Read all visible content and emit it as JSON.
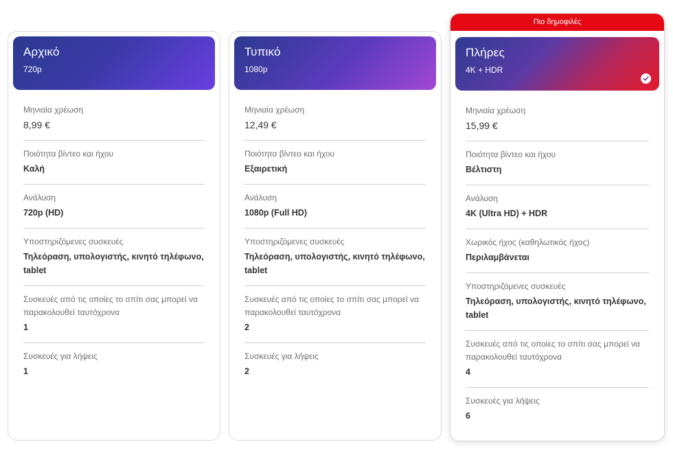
{
  "popular_label": "Πιο δημοφιλές",
  "row_labels": {
    "monthly": "Μηνιαία χρέωση",
    "quality": "Ποιότητα βίντεο και ήχου",
    "resolution": "Ανάλυση",
    "spatial": "Χωρικός ήχος (καθηλωτικός ήχος)",
    "devices": "Υποστηριζόμενες συσκευές",
    "simultaneous": "Συσκευές από τις οποίες το σπίτι σας μπορεί να παρακολουθεί ταυτόχρονα",
    "downloads": "Συσκευές για λήψεις"
  },
  "plans": [
    {
      "name": "Αρχικό",
      "sub": "720p",
      "monthly": "8,99 €",
      "quality": "Καλή",
      "resolution": "720p (HD)",
      "devices": "Τηλεόραση, υπολογιστής, κινητό τηλέφωνο, tablet",
      "simultaneous": "1",
      "downloads": "1"
    },
    {
      "name": "Τυπικό",
      "sub": "1080p",
      "monthly": "12,49 €",
      "quality": "Εξαιρετική",
      "resolution": "1080p (Full HD)",
      "devices": "Τηλεόραση, υπολογιστής, κινητό τηλέφωνο, tablet",
      "simultaneous": "2",
      "downloads": "2"
    },
    {
      "name": "Πλήρες",
      "sub": "4K + HDR",
      "monthly": "15,99 €",
      "quality": "Βέλτιστη",
      "resolution": "4K (Ultra HD) + HDR",
      "spatial": "Περιλαμβάνεται",
      "devices": "Τηλεόραση, υπολογιστής, κινητό τηλέφωνο, tablet",
      "simultaneous": "4",
      "downloads": "6"
    }
  ],
  "colors": {
    "accent_red": "#e50914",
    "divider": "#d0d0d0"
  }
}
